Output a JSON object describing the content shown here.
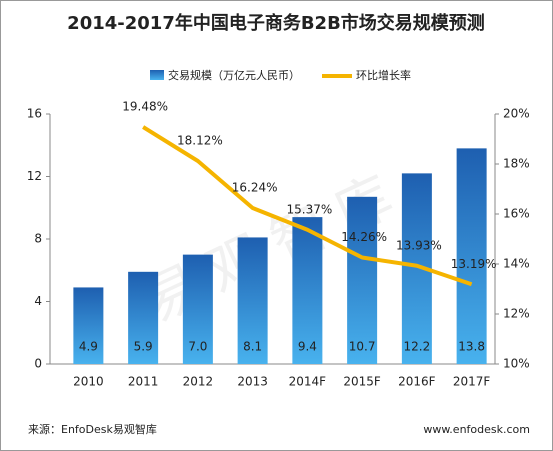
{
  "chart_data": {
    "type": "bar",
    "title": "2014-2017年中国电子商务B2B市场交易规模预测",
    "categories": [
      "2010",
      "2011",
      "2012",
      "2013",
      "2014F",
      "2015F",
      "2016F",
      "2017F"
    ],
    "series": [
      {
        "name": "交易规模（万亿元人民币）",
        "type": "bar",
        "color": "#2277cc",
        "values": [
          4.9,
          5.9,
          7.0,
          8.1,
          9.4,
          10.7,
          12.2,
          13.8
        ],
        "value_labels": [
          "4.9",
          "5.9",
          "7.0",
          "8.1",
          "9.4",
          "10.7",
          "12.2",
          "13.8"
        ]
      },
      {
        "name": "环比增长率",
        "type": "line",
        "axis": "y2",
        "color": "#f5b400",
        "values": [
          null,
          19.48,
          18.12,
          16.24,
          15.37,
          14.26,
          13.93,
          13.19
        ],
        "value_labels": [
          null,
          "19.48%",
          "18.12%",
          "16.24%",
          "15.37%",
          "14.26%",
          "13.93%",
          "13.19%"
        ]
      }
    ],
    "ylim": [
      0,
      16
    ],
    "yticks": [
      0,
      4,
      8,
      12,
      16
    ],
    "y2lim": [
      10,
      20
    ],
    "y2ticks": [
      {
        "value": 10,
        "label": "10%"
      },
      {
        "value": 12,
        "label": "12%"
      },
      {
        "value": 14,
        "label": "14%"
      },
      {
        "value": 16,
        "label": "16%"
      },
      {
        "value": 18,
        "label": "18%"
      },
      {
        "value": 20,
        "label": "20%"
      }
    ],
    "legend": "top",
    "watermark": "易观智库",
    "source": "来源：EnfoDesk易观智库",
    "website": "www.enfodesk.com"
  }
}
